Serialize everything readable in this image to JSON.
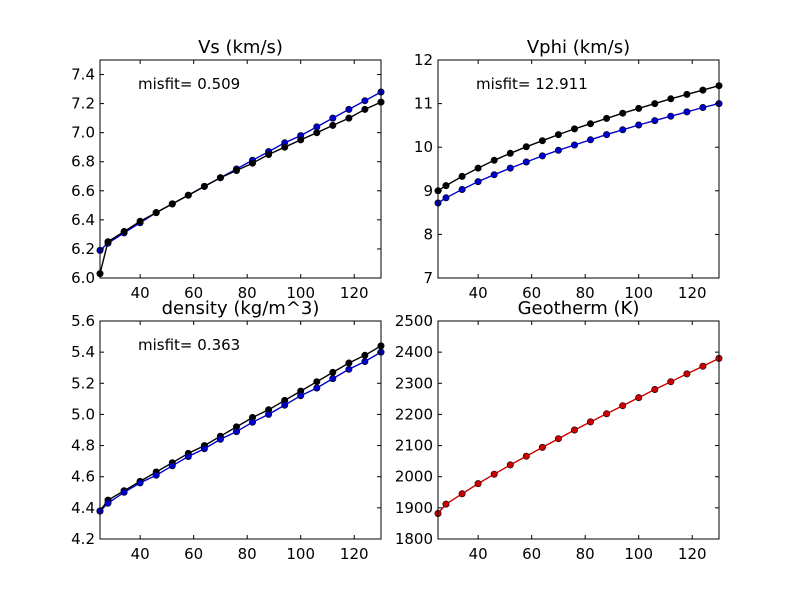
{
  "chart_data": [
    {
      "type": "line",
      "title": "Vs (km/s)",
      "annotation": "misfit= 0.509",
      "xlim": [
        25,
        130
      ],
      "ylim": [
        6.0,
        7.5
      ],
      "xticks": [
        40,
        60,
        80,
        100,
        120
      ],
      "xtick_labels": [
        "40",
        "60",
        "80",
        "100",
        "120"
      ],
      "yticks": [
        6.0,
        6.2,
        6.4,
        6.6,
        6.8,
        7.0,
        7.2,
        7.4
      ],
      "ytick_labels": [
        "6.0",
        "6.2",
        "6.4",
        "6.6",
        "6.8",
        "7.0",
        "7.2",
        "7.4"
      ],
      "series": [
        {
          "color": "#0000cc",
          "x": [
            25,
            28,
            34,
            40,
            46,
            52,
            58,
            64,
            70,
            76,
            82,
            88,
            94,
            100,
            106,
            112,
            118,
            124,
            130
          ],
          "y": [
            6.19,
            6.24,
            6.31,
            6.38,
            6.45,
            6.51,
            6.57,
            6.63,
            6.69,
            6.75,
            6.81,
            6.87,
            6.93,
            6.98,
            7.04,
            7.1,
            7.16,
            7.22,
            7.28
          ]
        },
        {
          "color": "#000000",
          "x": [
            25,
            28,
            34,
            40,
            46,
            52,
            58,
            64,
            70,
            76,
            82,
            88,
            94,
            100,
            106,
            112,
            118,
            124,
            130
          ],
          "y": [
            6.03,
            6.25,
            6.32,
            6.39,
            6.45,
            6.51,
            6.57,
            6.63,
            6.69,
            6.74,
            6.79,
            6.85,
            6.9,
            6.95,
            7.0,
            7.05,
            7.1,
            7.16,
            7.21
          ]
        }
      ]
    },
    {
      "type": "line",
      "title": "Vphi (km/s)",
      "annotation": "misfit= 12.911",
      "xlim": [
        25,
        130
      ],
      "ylim": [
        7,
        12
      ],
      "xticks": [
        40,
        60,
        80,
        100,
        120
      ],
      "xtick_labels": [
        "40",
        "60",
        "80",
        "100",
        "120"
      ],
      "yticks": [
        7,
        8,
        9,
        10,
        11,
        12
      ],
      "ytick_labels": [
        "7",
        "8",
        "9",
        "10",
        "11",
        "12"
      ],
      "series": [
        {
          "color": "#000000",
          "x": [
            25,
            28,
            34,
            40,
            46,
            52,
            58,
            64,
            70,
            76,
            82,
            88,
            94,
            100,
            106,
            112,
            118,
            124,
            130
          ],
          "y": [
            9.0,
            9.12,
            9.33,
            9.52,
            9.7,
            9.86,
            10.01,
            10.15,
            10.29,
            10.42,
            10.54,
            10.66,
            10.78,
            10.89,
            11.0,
            11.11,
            11.21,
            11.31,
            11.41
          ]
        },
        {
          "color": "#0000cc",
          "x": [
            25,
            28,
            34,
            40,
            46,
            52,
            58,
            64,
            70,
            76,
            82,
            88,
            94,
            100,
            106,
            112,
            118,
            124,
            130
          ],
          "y": [
            8.72,
            8.84,
            9.03,
            9.21,
            9.37,
            9.52,
            9.66,
            9.8,
            9.93,
            10.05,
            10.17,
            10.29,
            10.4,
            10.51,
            10.61,
            10.71,
            10.81,
            10.91,
            11.0
          ]
        }
      ]
    },
    {
      "type": "line",
      "title": "density (kg/m^3)",
      "annotation": "misfit= 0.363",
      "xlim": [
        25,
        130
      ],
      "ylim": [
        4.2,
        5.6
      ],
      "xticks": [
        40,
        60,
        80,
        100,
        120
      ],
      "xtick_labels": [
        "40",
        "60",
        "80",
        "100",
        "120"
      ],
      "yticks": [
        4.2,
        4.4,
        4.6,
        4.8,
        5.0,
        5.2,
        5.4,
        5.6
      ],
      "ytick_labels": [
        "4.2",
        "4.4",
        "4.6",
        "4.8",
        "5.0",
        "5.2",
        "5.4",
        "5.6"
      ],
      "series": [
        {
          "color": "#000000",
          "x": [
            25,
            28,
            34,
            40,
            46,
            52,
            58,
            64,
            70,
            76,
            82,
            88,
            94,
            100,
            106,
            112,
            118,
            124,
            130
          ],
          "y": [
            4.38,
            4.45,
            4.51,
            4.57,
            4.63,
            4.69,
            4.75,
            4.8,
            4.86,
            4.92,
            4.98,
            5.03,
            5.09,
            5.15,
            5.21,
            5.27,
            5.33,
            5.38,
            5.44
          ]
        },
        {
          "color": "#0000cc",
          "x": [
            25,
            28,
            34,
            40,
            46,
            52,
            58,
            64,
            70,
            76,
            82,
            88,
            94,
            100,
            106,
            112,
            118,
            124,
            130
          ],
          "y": [
            4.38,
            4.43,
            4.5,
            4.56,
            4.61,
            4.67,
            4.73,
            4.78,
            4.84,
            4.89,
            4.95,
            5.0,
            5.06,
            5.12,
            5.17,
            5.23,
            5.29,
            5.34,
            5.4
          ]
        }
      ]
    },
    {
      "type": "line",
      "title": "Geotherm (K)",
      "annotation": "",
      "xlim": [
        25,
        130
      ],
      "ylim": [
        1800,
        2500
      ],
      "xticks": [
        40,
        60,
        80,
        100,
        120
      ],
      "xtick_labels": [
        "40",
        "60",
        "80",
        "100",
        "120"
      ],
      "yticks": [
        1800,
        1900,
        2000,
        2100,
        2200,
        2300,
        2400,
        2500
      ],
      "ytick_labels": [
        "1800",
        "1900",
        "2000",
        "2100",
        "2200",
        "2300",
        "2400",
        "2500"
      ],
      "series": [
        {
          "color": "#cc0000",
          "x": [
            25,
            28,
            34,
            40,
            46,
            52,
            58,
            64,
            70,
            76,
            82,
            88,
            94,
            100,
            106,
            112,
            118,
            124,
            130
          ],
          "y": [
            1882,
            1912,
            1945,
            1978,
            2008,
            2038,
            2066,
            2094,
            2122,
            2150,
            2176,
            2202,
            2228,
            2254,
            2280,
            2305,
            2330,
            2355,
            2380
          ]
        }
      ]
    }
  ]
}
